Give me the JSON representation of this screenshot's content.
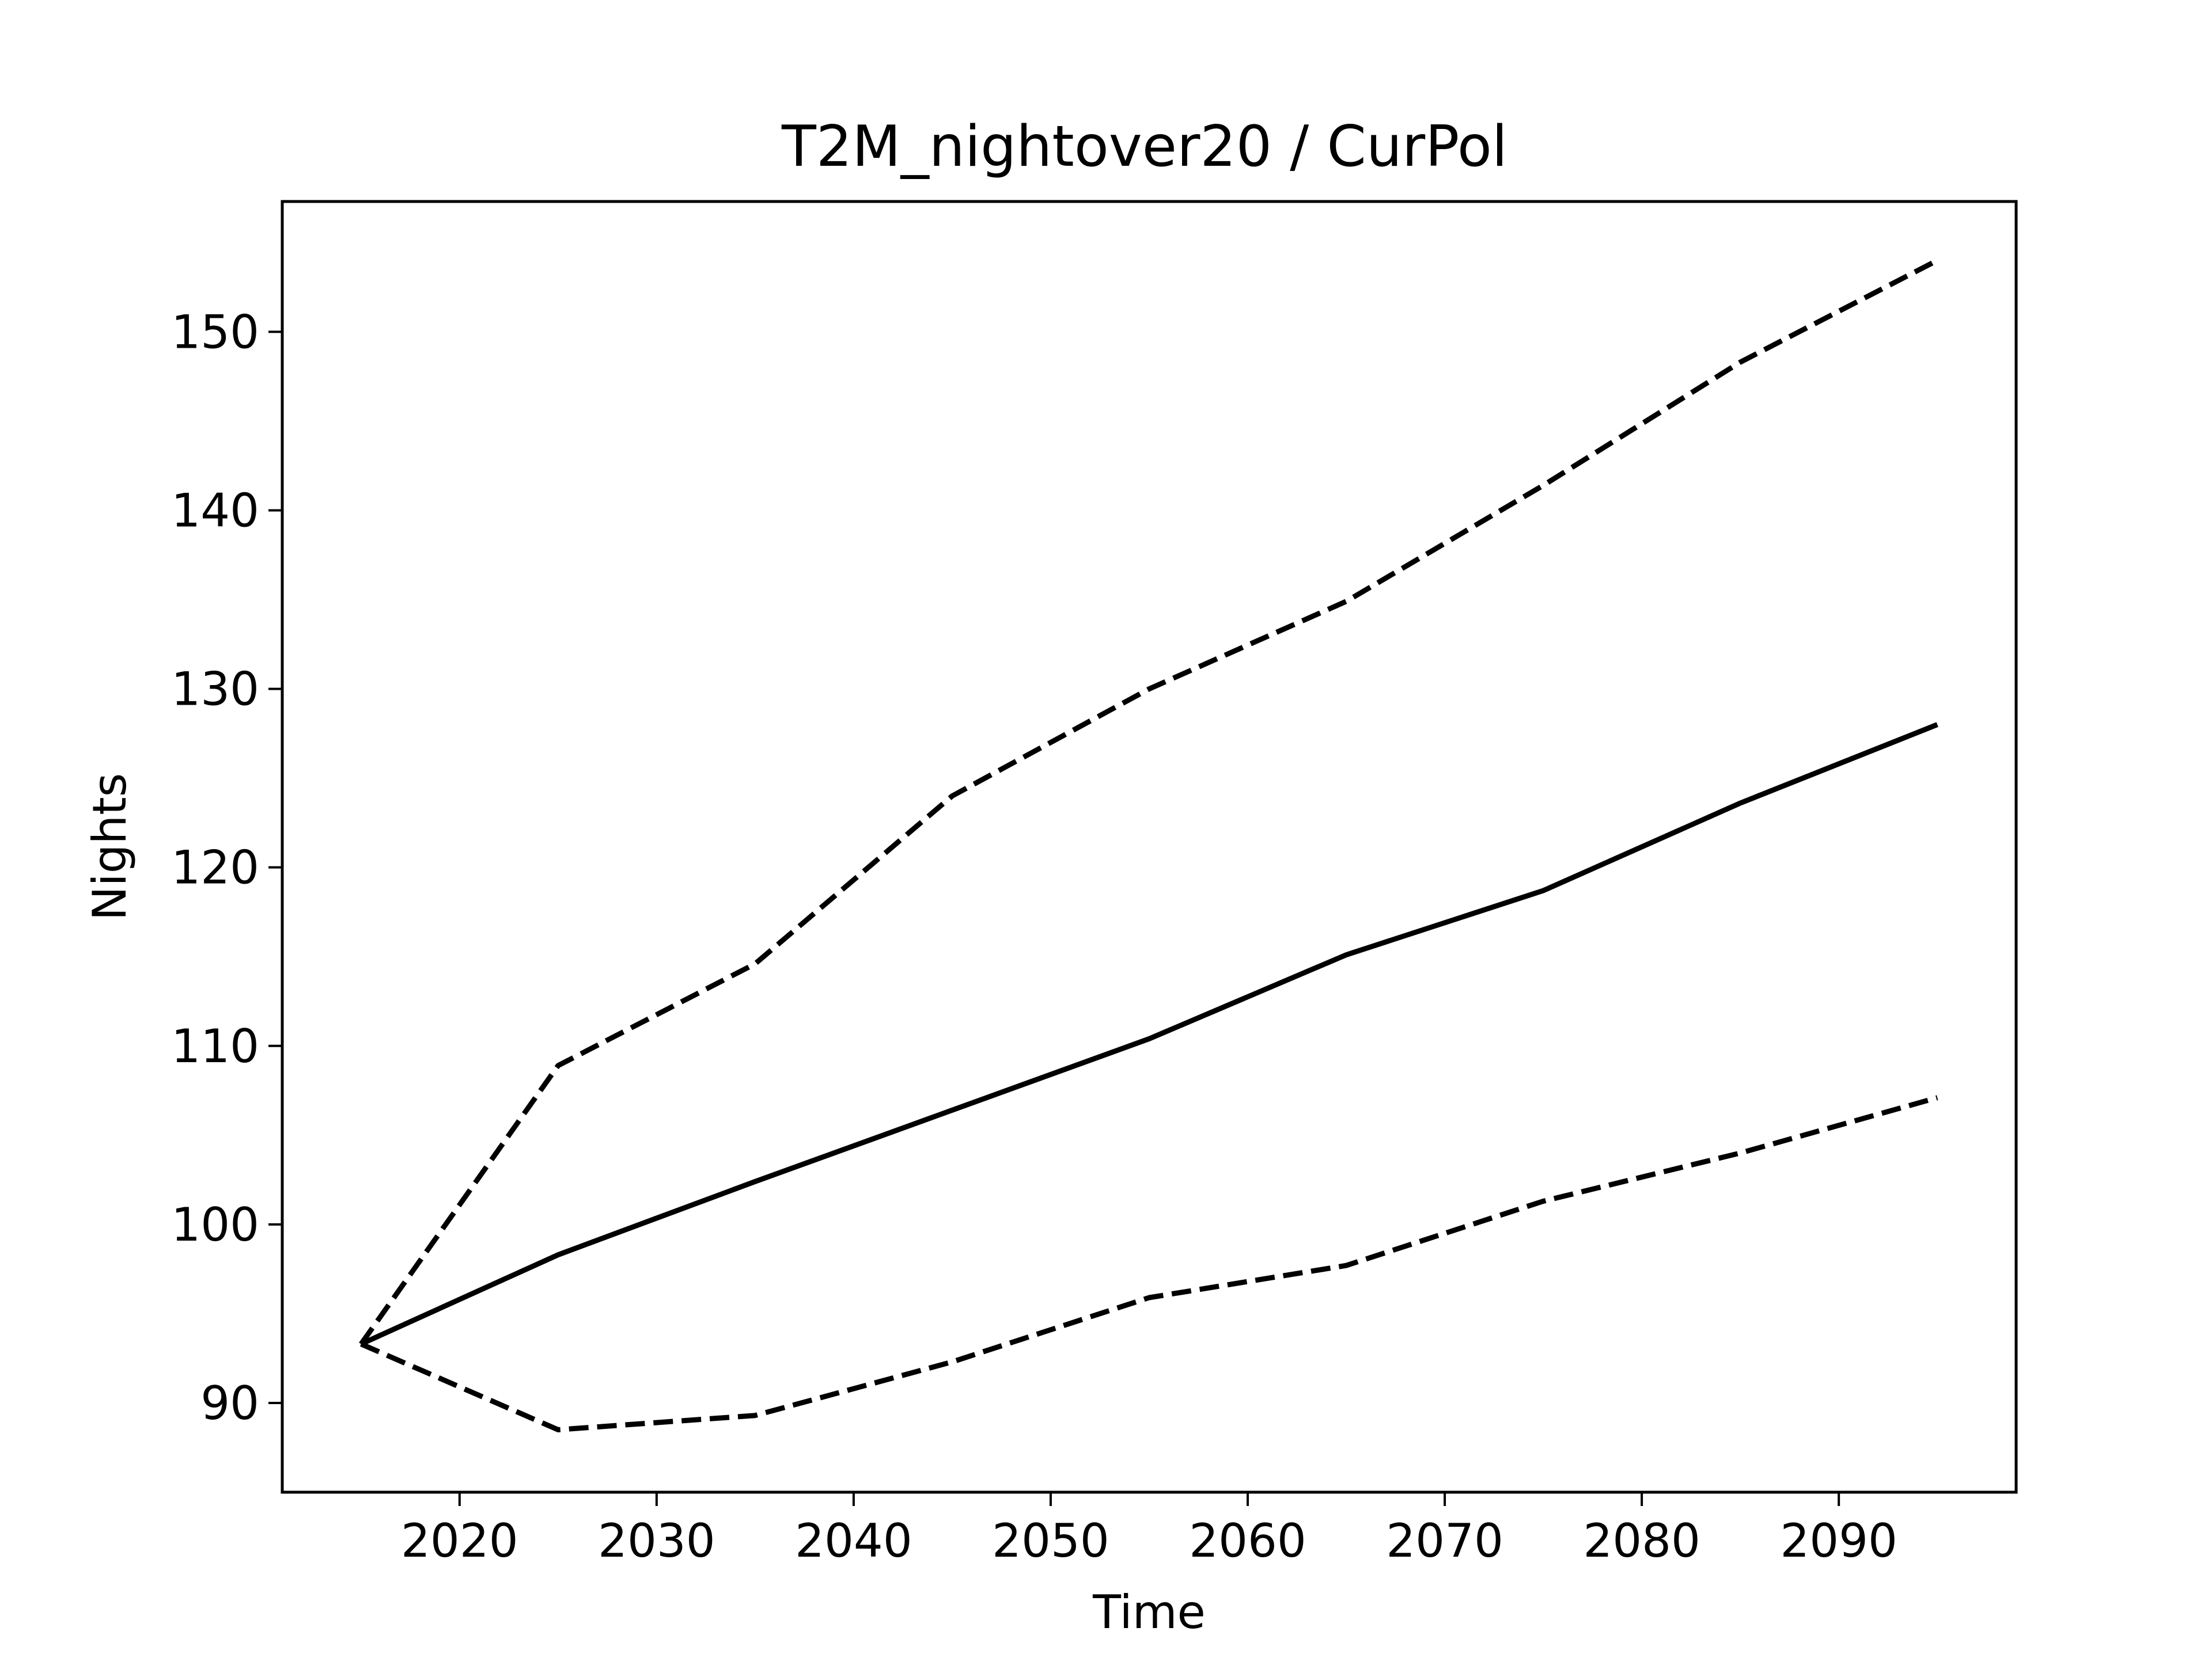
{
  "chart_data": {
    "type": "line",
    "title": "T2M_nightover20 / CurPol",
    "xlabel": "Time",
    "ylabel": "Nights",
    "xlim": [
      2011,
      2099
    ],
    "ylim": [
      85,
      157.3
    ],
    "xticks": [
      2020,
      2030,
      2040,
      2050,
      2060,
      2070,
      2080,
      2090
    ],
    "xtick_labels": [
      "2020",
      "2030",
      "2040",
      "2050",
      "2060",
      "2070",
      "2080",
      "2090"
    ],
    "yticks": [
      90,
      100,
      110,
      120,
      130,
      140,
      150
    ],
    "ytick_labels": [
      "90",
      "100",
      "110",
      "120",
      "130",
      "140",
      "150"
    ],
    "grid": false,
    "legend": "none",
    "x": [
      2015,
      2025,
      2035,
      2045,
      2055,
      2065,
      2075,
      2085,
      2095
    ],
    "series": [
      {
        "style": "solid",
        "color": "#000000",
        "values": [
          93.3,
          98.3,
          102.4,
          106.4,
          110.4,
          115.1,
          118.7,
          123.6,
          128.0
        ]
      },
      {
        "style": "dashed",
        "color": "#000000",
        "values": [
          93.3,
          108.9,
          114.6,
          124.0,
          130.0,
          134.9,
          141.4,
          148.3,
          154.0
        ]
      },
      {
        "style": "dashed",
        "color": "#000000",
        "values": [
          93.3,
          88.5,
          89.3,
          92.3,
          95.9,
          97.7,
          101.3,
          104.0,
          107.1
        ]
      }
    ]
  }
}
